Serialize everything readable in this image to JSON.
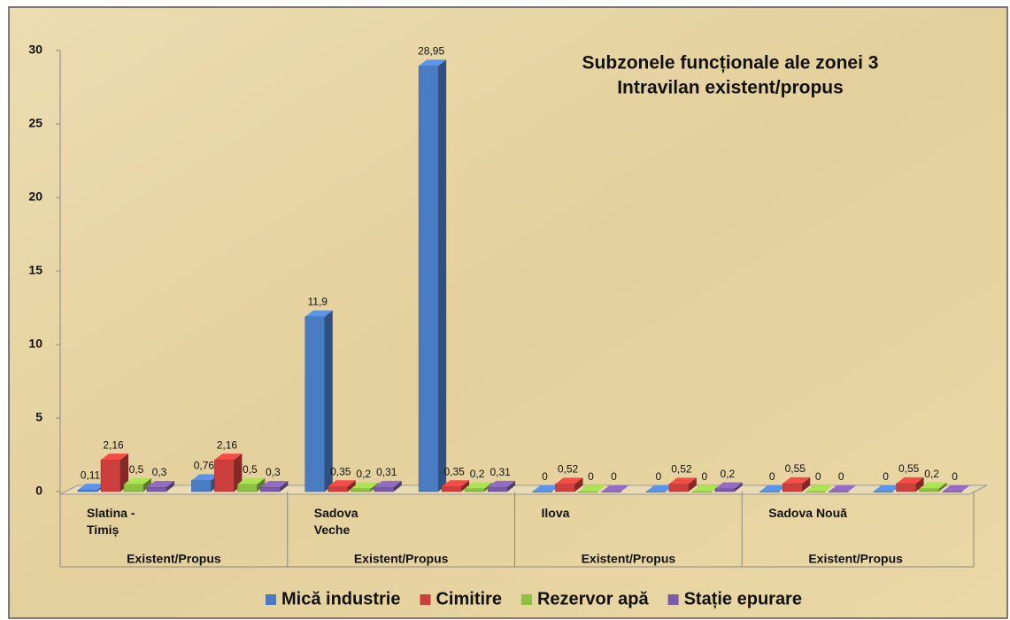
{
  "chart_data": {
    "type": "bar3d",
    "title": "Subzonele funcționale ale zonei 3",
    "subtitle": "Intravilan existent/propus",
    "categories": [
      "Slatina - Timiș",
      null,
      "Sadova Veche",
      null,
      "Ilova",
      null,
      "Sadova Nouă",
      null
    ],
    "group_labels": [
      "Existent/Propus",
      "Existent/Propus",
      "Existent/Propus",
      "Existent/Propus"
    ],
    "series": [
      {
        "name": "Mică industrie",
        "color": "#4a7cc4",
        "values": [
          0.11,
          0.76,
          11.9,
          28.95,
          0,
          0,
          0,
          0
        ],
        "value_labels": [
          "0,11",
          "0,76",
          "11,9",
          "28,95",
          "0",
          "0",
          "0",
          "0"
        ]
      },
      {
        "name": "Cimitire",
        "color": "#cc3f3c",
        "values": [
          2.16,
          2.16,
          0.35,
          0.35,
          0.52,
          0.52,
          0.55,
          0.55
        ],
        "value_labels": [
          "2,16",
          "2,16",
          "0,35",
          "0,35",
          "0,52",
          "0,52",
          "0,55",
          "0,55"
        ]
      },
      {
        "name": "Rezervor apă",
        "color": "#8fbf45",
        "values": [
          0.5,
          0.5,
          0.2,
          0.2,
          0,
          0,
          0,
          0.2
        ],
        "value_labels": [
          "0,5",
          "0,5",
          "0,2",
          "0,2",
          "0",
          "0",
          "0",
          "0,2"
        ]
      },
      {
        "name": "Stație epurare",
        "color": "#7b5aa6",
        "values": [
          0.3,
          0.3,
          0.31,
          0.31,
          0,
          0.2,
          0,
          0
        ],
        "value_labels": [
          "0,3",
          "0,3",
          "0,31",
          "0,31",
          "0",
          "0,2",
          "0",
          "0"
        ]
      }
    ],
    "ylim": [
      0,
      30
    ],
    "yticks": [
      0,
      5,
      10,
      15,
      20,
      25,
      30
    ],
    "legend": "bottom"
  }
}
